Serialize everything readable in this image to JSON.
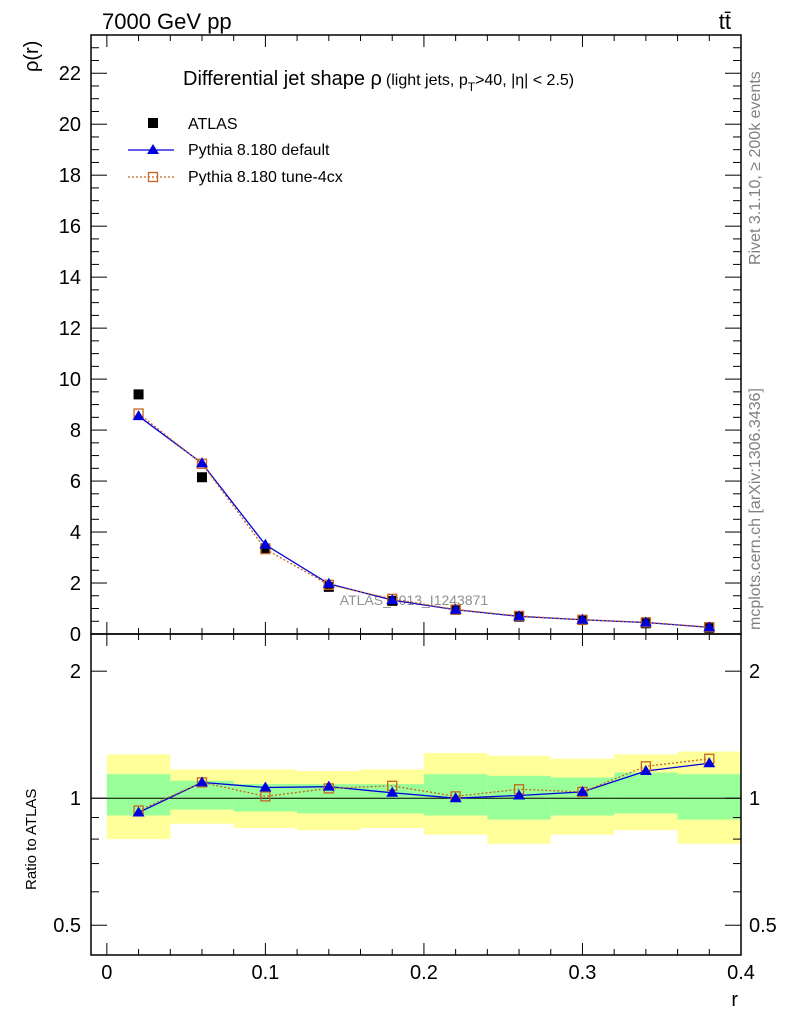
{
  "header": {
    "left": "7000 GeV pp",
    "right": "tt̄"
  },
  "side_labels": {
    "rivet": "Rivet 3.1.10, ≥ 200k events",
    "mcplots": "mcplots.cern.ch [arXiv:1306.3436]"
  },
  "watermark": "ATLAS_2013_I1243871",
  "colors": {
    "atlas": "#000000",
    "default": "#0000dd",
    "tune": "#c86420",
    "band_inner": "#99ff99",
    "band_outer": "#ffff99"
  },
  "chart_data": [
    {
      "type": "scatter",
      "title": {
        "main": "Differential jet shape ρ",
        "sub": "(light jets, p",
        "sub_index": "T",
        "sub_rest": ">40, |η| < 2.5)"
      },
      "ylabel": "ρ(r)",
      "ylim": [
        0,
        23.5
      ],
      "xlim": [
        -0.01,
        0.4
      ],
      "yticks": [
        0,
        2,
        4,
        6,
        8,
        10,
        12,
        14,
        16,
        18,
        20,
        22
      ],
      "legend": {
        "placement": "top-left",
        "entries": [
          "ATLAS",
          "Pythia 8.180 default",
          "Pythia 8.180 tune-4cx"
        ]
      },
      "x": [
        0.02,
        0.06,
        0.1,
        0.14,
        0.18,
        0.22,
        0.26,
        0.3,
        0.34,
        0.38
      ],
      "series": [
        {
          "name": "ATLAS",
          "values": [
            9.4,
            6.15,
            3.35,
            1.85,
            1.3,
            0.95,
            0.68,
            0.55,
            0.42,
            0.24
          ]
        },
        {
          "name": "Pythia 8.180 default",
          "values": [
            8.55,
            6.7,
            3.5,
            1.97,
            1.33,
            0.95,
            0.69,
            0.56,
            0.45,
            0.26
          ]
        },
        {
          "name": "Pythia 8.180 tune-4cx",
          "values": [
            8.65,
            6.68,
            3.33,
            1.93,
            1.38,
            0.96,
            0.71,
            0.56,
            0.46,
            0.27
          ]
        }
      ]
    },
    {
      "type": "line",
      "ylabel": "Ratio to ATLAS",
      "xlabel": "r",
      "ylim": [
        0.425,
        2.45
      ],
      "xlim": [
        -0.01,
        0.4
      ],
      "yscale": "log",
      "yticks": [
        0.5,
        1,
        2
      ],
      "xticks": [
        0,
        0.1,
        0.2,
        0.3,
        0.4
      ],
      "xticklabels": [
        "0",
        "0.1",
        "0.2",
        "0.3",
        "0.4"
      ],
      "bin_edges": [
        0.0,
        0.04,
        0.08,
        0.12,
        0.16,
        0.2,
        0.24,
        0.28,
        0.32,
        0.36,
        0.4
      ],
      "band_inner": [
        [
          0.91,
          1.14
        ],
        [
          0.94,
          1.1
        ],
        [
          0.93,
          1.08
        ],
        [
          0.92,
          1.08
        ],
        [
          0.92,
          1.08
        ],
        [
          0.91,
          1.14
        ],
        [
          0.89,
          1.13
        ],
        [
          0.91,
          1.12
        ],
        [
          0.92,
          1.15
        ],
        [
          0.89,
          1.14
        ]
      ],
      "band_outer": [
        [
          0.8,
          1.27
        ],
        [
          0.87,
          1.17
        ],
        [
          0.85,
          1.17
        ],
        [
          0.84,
          1.16
        ],
        [
          0.85,
          1.17
        ],
        [
          0.82,
          1.28
        ],
        [
          0.78,
          1.26
        ],
        [
          0.82,
          1.24
        ],
        [
          0.84,
          1.27
        ],
        [
          0.78,
          1.29
        ]
      ],
      "x": [
        0.02,
        0.06,
        0.1,
        0.14,
        0.18,
        0.22,
        0.26,
        0.3,
        0.34,
        0.38
      ],
      "series": [
        {
          "name": "Pythia 8.180 default",
          "values": [
            0.925,
            1.09,
            1.06,
            1.065,
            1.03,
            1.0,
            1.015,
            1.035,
            1.16,
            1.21
          ]
        },
        {
          "name": "Pythia 8.180 tune-4cx",
          "values": [
            0.935,
            1.09,
            1.01,
            1.055,
            1.07,
            1.01,
            1.05,
            1.035,
            1.19,
            1.24
          ]
        }
      ]
    }
  ]
}
